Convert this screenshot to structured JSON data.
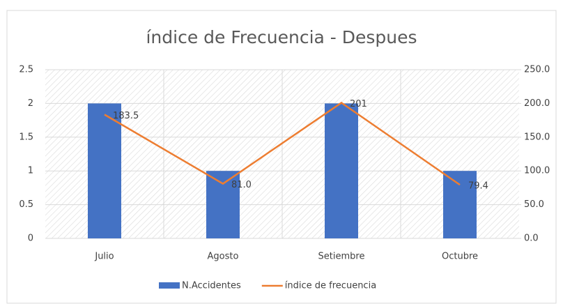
{
  "chart_data": {
    "type": "bar",
    "title": "índice de Frecuencia - Despues",
    "categories": [
      "Julio",
      "Agosto",
      "Setiembre",
      "Octubre"
    ],
    "series": [
      {
        "name": "N.Accidentes",
        "type": "bar",
        "color": "#4472c4",
        "values": [
          2,
          1,
          2,
          1
        ]
      },
      {
        "name": "índice de frecuencia",
        "type": "line",
        "axis": "y2",
        "color": "#ed7d31",
        "values": [
          183.5,
          81,
          201,
          79.4
        ],
        "value_labels": [
          "183.5",
          "81.0",
          "201",
          "79.4"
        ]
      }
    ],
    "ylim": [
      0,
      2.5
    ],
    "yticks": [
      0,
      0.5,
      1,
      1.5,
      2,
      2.5
    ],
    "y2lim": [
      0,
      250
    ],
    "y2ticks": [
      {
        "value": 0,
        "label": "0.0"
      },
      {
        "value": 50,
        "label": "50.0"
      },
      {
        "value": 100,
        "label": "100.0"
      },
      {
        "value": 150,
        "label": "150.0"
      },
      {
        "value": 200,
        "label": "200.0"
      },
      {
        "value": 250,
        "label": "250.0"
      }
    ],
    "grid": true,
    "legend": "bottom"
  }
}
